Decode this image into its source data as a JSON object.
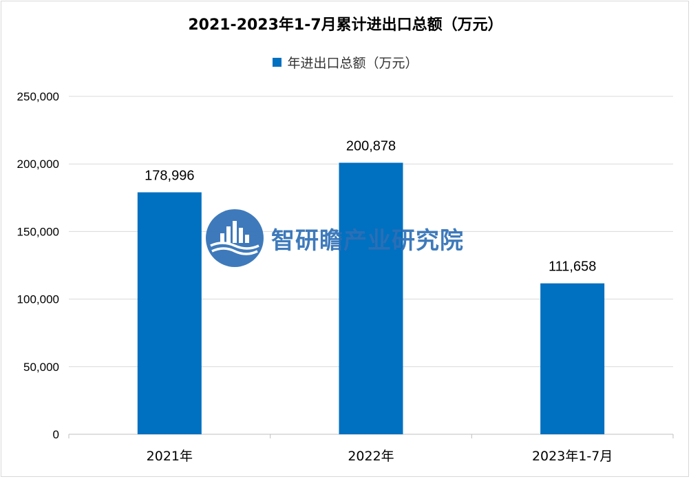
{
  "chart_data": {
    "type": "bar",
    "title": "2021-2023年1-7月累计进出口总额（万元）",
    "categories": [
      "2021年",
      "2022年",
      "2023年1-7月"
    ],
    "series": [
      {
        "name": "年进出口总额（万元）",
        "values": [
          178996,
          200878,
          111658
        ]
      }
    ],
    "data_labels": [
      "178,996",
      "200,878",
      "111,658"
    ],
    "y_ticks": [
      "0",
      "50,000",
      "100,000",
      "150,000",
      "200,000",
      "250,000"
    ],
    "ylim": [
      0,
      250000
    ],
    "grid": true,
    "legend_position": "top",
    "bar_color": "#0070c0"
  },
  "watermark": {
    "text": "智研瞻产业研究院",
    "color": "#2e6fb6"
  }
}
